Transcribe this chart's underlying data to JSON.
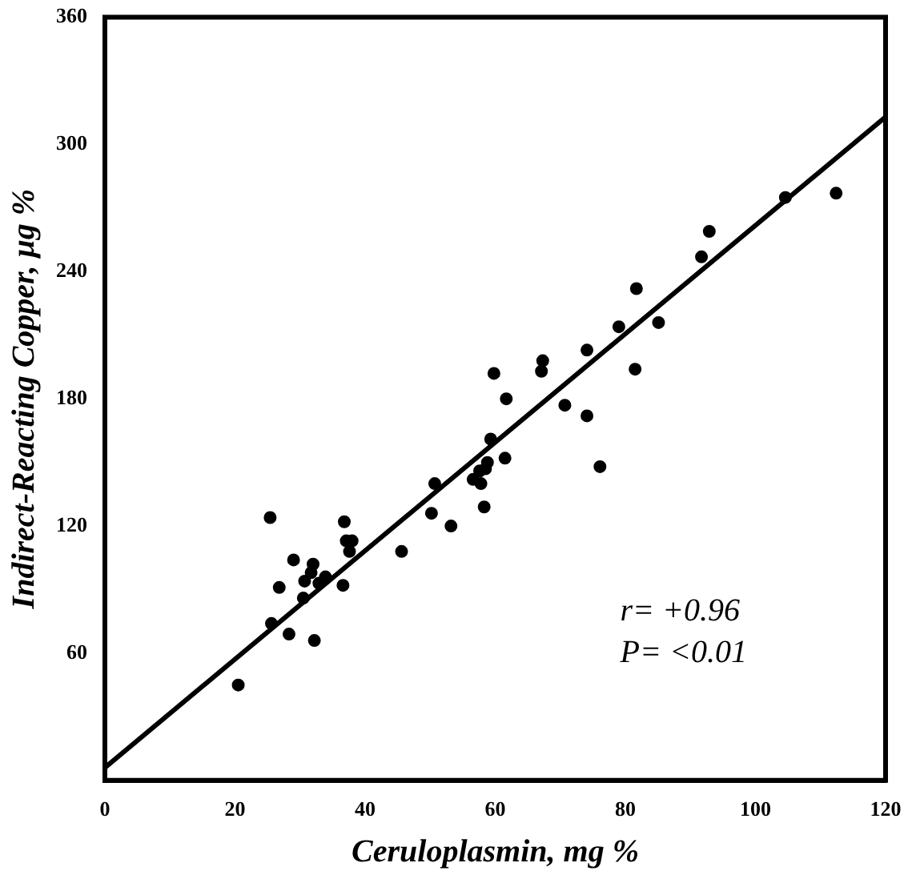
{
  "chart_data": {
    "type": "scatter",
    "xlabel": "Ceruloplasmin, mg %",
    "ylabel": "Indirect-Reacting Copper, μg %",
    "xlim": [
      0,
      120
    ],
    "xticks": [
      0,
      20,
      40,
      60,
      80,
      100,
      120
    ],
    "ylim": [
      0,
      360
    ],
    "yticks": [
      60,
      120,
      180,
      240,
      300,
      360
    ],
    "grid": false,
    "legend": false,
    "marker": "circle",
    "series": [
      {
        "color": "#000000",
        "x": [
          20.5,
          25.6,
          25.4,
          28.3,
          26.8,
          29,
          30.5,
          30.7,
          31.7,
          32,
          32.2,
          32.9,
          33.9,
          36.6,
          36.8,
          37.1,
          38,
          37.6,
          45.6,
          50.2,
          50.7,
          53.2,
          56.6,
          57.6,
          57.8,
          58.5,
          58.3,
          58.8,
          59.3,
          59.8,
          61.5,
          61.7,
          70.7,
          67.1,
          67.3,
          74.1,
          74.1,
          76.1,
          79,
          81.7,
          81.5,
          85.1,
          91.7,
          92.9,
          104.6,
          112.4
        ],
        "values": [
          45,
          74,
          124,
          69,
          91,
          104,
          86,
          94,
          98,
          102,
          66,
          93,
          96,
          92,
          122,
          113,
          113,
          108,
          108,
          126,
          140,
          120,
          142,
          146,
          140,
          147,
          129,
          150,
          161,
          192,
          152,
          180,
          177,
          193,
          198,
          172,
          203,
          148,
          214,
          232,
          194,
          216,
          247,
          259,
          275,
          277
        ]
      },
      {
        "type": "line",
        "color": "#000000",
        "marker": "none",
        "x": [
          0,
          120
        ],
        "values": [
          6,
          313
        ]
      }
    ],
    "annotations": [
      "r= +0.96",
      "P= <0.01"
    ]
  }
}
